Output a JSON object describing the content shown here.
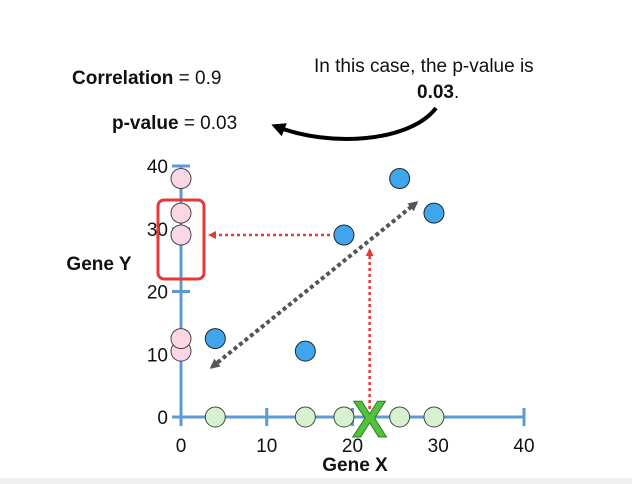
{
  "stats": {
    "correlation_label": "Correlation",
    "correlation_eq": "=",
    "correlation_value": "0.9",
    "pvalue_label": "p-value",
    "pvalue_rest": "= 0.03"
  },
  "callout": {
    "line1": "In this case, the p-value is",
    "line2_bold": "0.03",
    "line2_tail": "."
  },
  "colors": {
    "axis": "#5b9bd5",
    "point": "#3fa6ee",
    "x_projection": "#d6f1cf",
    "y_projection": "#fbd6e4",
    "highlight": "#e53935",
    "marker": "#53c23f",
    "diag_arrow": "#555555"
  },
  "chart_data": {
    "type": "scatter",
    "xlabel": "Gene X",
    "ylabel": "Gene Y",
    "xlim": [
      0,
      40
    ],
    "ylim": [
      0,
      40
    ],
    "x_ticks": [
      0,
      10,
      20,
      30,
      40
    ],
    "y_ticks": [
      0,
      10,
      20,
      30,
      40
    ],
    "points": [
      {
        "x": 4,
        "y": 12.5
      },
      {
        "x": 14.5,
        "y": 10.5
      },
      {
        "x": 19,
        "y": 29
      },
      {
        "x": 25.5,
        "y": 38
      },
      {
        "x": 29.5,
        "y": 32.5
      }
    ],
    "x_projections": [
      4,
      14.5,
      19,
      25.5,
      29.5
    ],
    "y_projections": [
      10.5,
      12.5,
      29,
      32.5,
      38
    ],
    "marker_label": "X",
    "marker_x": 22
  }
}
